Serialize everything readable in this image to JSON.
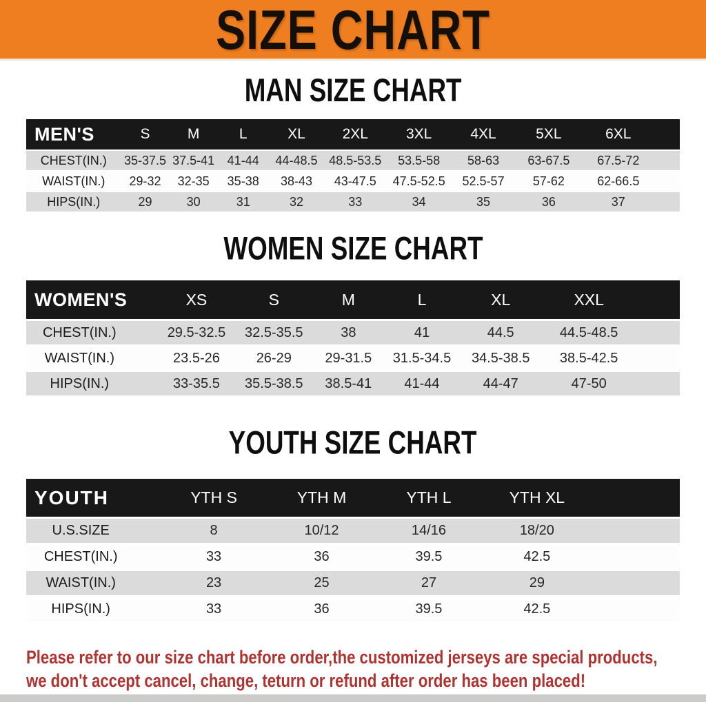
{
  "banner": {
    "title": "SIZE CHART",
    "bg_color": "#ee7e20"
  },
  "sections": [
    {
      "heading": "MAN SIZE CHART",
      "label": "MEN'S",
      "columns": [
        "S",
        "M",
        "L",
        "XL",
        "2XL",
        "3XL",
        "4XL",
        "5XL",
        "6XL"
      ],
      "rows": [
        {
          "label": "CHEST(IN.)",
          "values": [
            "35-37.5",
            "37.5-41",
            "41-44",
            "44-48.5",
            "48.5-53.5",
            "53.5-58",
            "58-63",
            "63-67.5",
            "67.5-72"
          ]
        },
        {
          "label": "WAIST(IN.)",
          "values": [
            "29-32",
            "32-35",
            "35-38",
            "38-43",
            "43-47.5",
            "47.5-52.5",
            "52.5-57",
            "57-62",
            "62-66.5"
          ]
        },
        {
          "label": "HIPS(IN.)",
          "values": [
            "29",
            "30",
            "31",
            "32",
            "33",
            "34",
            "35",
            "36",
            "37"
          ]
        }
      ]
    },
    {
      "heading": "WOMEN SIZE CHART",
      "label": "WOMEN'S",
      "columns": [
        "XS",
        "S",
        "M",
        "L",
        "XL",
        "XXL"
      ],
      "rows": [
        {
          "label": "CHEST(IN.)",
          "values": [
            "29.5-32.5",
            "32.5-35.5",
            "38",
            "41",
            "44.5",
            "44.5-48.5"
          ]
        },
        {
          "label": "WAIST(IN.)",
          "values": [
            "23.5-26",
            "26-29",
            "29-31.5",
            "31.5-34.5",
            "34.5-38.5",
            "38.5-42.5"
          ]
        },
        {
          "label": "HIPS(IN.)",
          "values": [
            "33-35.5",
            "35.5-38.5",
            "38.5-41",
            "41-44",
            "44-47",
            "47-50"
          ]
        }
      ]
    },
    {
      "heading": "YOUTH SIZE CHART",
      "label": "YOUTH",
      "columns": [
        "YTH S",
        "YTH M",
        "YTH L",
        "YTH XL"
      ],
      "rows": [
        {
          "label": "U.S.SIZE",
          "values": [
            "8",
            "10/12",
            "14/16",
            "18/20"
          ]
        },
        {
          "label": "CHEST(IN.)",
          "values": [
            "33",
            "36",
            "39.5",
            "42.5"
          ]
        },
        {
          "label": "WAIST(IN.)",
          "values": [
            "23",
            "25",
            "27",
            "29"
          ]
        },
        {
          "label": "HIPS(IN.)",
          "values": [
            "33",
            "36",
            "39.5",
            "42.5"
          ]
        }
      ]
    }
  ],
  "disclaimer": {
    "line1": "Please refer to our size chart before order,the customized jerseys are special products,",
    "line2": "we don't accept cancel, change, teturn or refund after order has been placed!",
    "color": "#ae3331"
  }
}
